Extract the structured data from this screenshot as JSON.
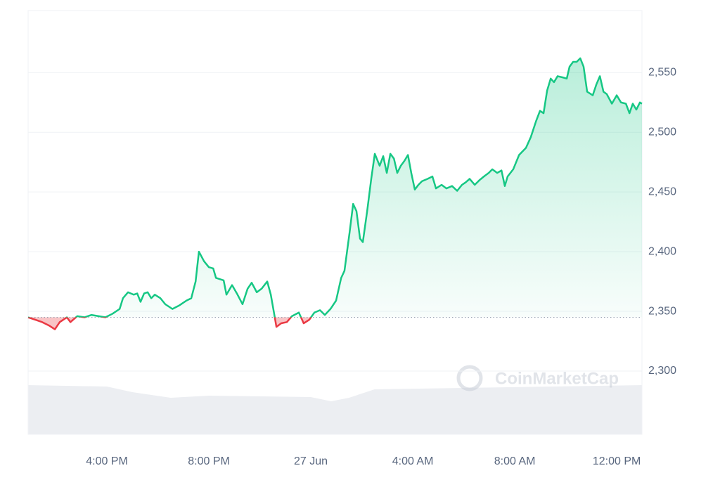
{
  "chart_data": {
    "type": "line",
    "watermark": "CoinMarketCap",
    "x": [
      12.91,
      13.19,
      13.46,
      13.74,
      13.96,
      14.15,
      14.43,
      14.57,
      14.84,
      15.12,
      15.39,
      15.94,
      16.22,
      16.5,
      16.63,
      16.83,
      17.05,
      17.19,
      17.32,
      17.46,
      17.6,
      17.74,
      17.88,
      18.1,
      18.29,
      18.57,
      18.84,
      19.12,
      19.31,
      19.48,
      19.61,
      19.81,
      20.0,
      20.17,
      20.28,
      20.58,
      20.69,
      20.91,
      21.1,
      21.32,
      21.52,
      21.68,
      21.88,
      22.07,
      22.29,
      22.43,
      22.57,
      22.65,
      22.84,
      23.06,
      23.26,
      23.53,
      23.72,
      23.94,
      24.14,
      24.36,
      24.55,
      24.77,
      24.99,
      25.19,
      25.32,
      25.52,
      25.66,
      25.79,
      25.93,
      26.04,
      26.21,
      26.37,
      26.51,
      26.7,
      26.84,
      26.98,
      27.12,
      27.26,
      27.39,
      27.53,
      27.67,
      27.81,
      27.94,
      28.08,
      28.22,
      28.36,
      28.58,
      28.77,
      28.91,
      29.13,
      29.32,
      29.54,
      29.74,
      29.93,
      30.07,
      30.23,
      30.43,
      30.62,
      30.79,
      30.98,
      31.12,
      31.31,
      31.48,
      31.61,
      31.72,
      31.94,
      32.17,
      32.44,
      32.63,
      32.83,
      32.99,
      33.13,
      33.27,
      33.41,
      33.54,
      33.68,
      33.88,
      34.04,
      34.15,
      34.29,
      34.43,
      34.57,
      34.7,
      34.84,
      35.06,
      35.2,
      35.34,
      35.48,
      35.61,
      35.81,
      36.0,
      36.17,
      36.36,
      36.5,
      36.63,
      36.77,
      36.91,
      36.99
    ],
    "series": [
      {
        "name": "Price",
        "color": "#16c784",
        "down_color": "#ea3943",
        "values": [
          2345,
          2343,
          2341,
          2338,
          2335,
          2341,
          2345,
          2341,
          2346,
          2345,
          2347,
          2345,
          2348,
          2352,
          2361,
          2366,
          2364,
          2365,
          2358,
          2365,
          2366,
          2361,
          2364,
          2361,
          2356,
          2352,
          2355,
          2359,
          2361,
          2375,
          2400,
          2392,
          2387,
          2386,
          2378,
          2376,
          2364,
          2372,
          2365,
          2356,
          2369,
          2374,
          2366,
          2369,
          2375,
          2364,
          2347,
          2337,
          2340,
          2341,
          2346,
          2349,
          2340,
          2343,
          2349,
          2351,
          2347,
          2352,
          2359,
          2378,
          2384,
          2416,
          2440,
          2434,
          2411,
          2408,
          2434,
          2461,
          2482,
          2472,
          2480,
          2466,
          2482,
          2478,
          2466,
          2472,
          2476,
          2481,
          2466,
          2452,
          2456,
          2459,
          2461,
          2463,
          2453,
          2456,
          2453,
          2455,
          2451,
          2456,
          2458,
          2461,
          2456,
          2460,
          2463,
          2466,
          2469,
          2466,
          2468,
          2455,
          2463,
          2469,
          2481,
          2487,
          2496,
          2509,
          2518,
          2516,
          2535,
          2545,
          2542,
          2547,
          2546,
          2545,
          2555,
          2559,
          2559,
          2562,
          2555,
          2534,
          2531,
          2540,
          2547,
          2534,
          2532,
          2524,
          2531,
          2525,
          2524,
          2516,
          2524,
          2519,
          2525,
          2524
        ]
      }
    ],
    "baseline": 2345,
    "volume": {
      "color": "#eceef2",
      "x": [
        12.91,
        16.0,
        17.0,
        18.5,
        20.0,
        24.0,
        24.8,
        25.5,
        26.5,
        36.99
      ],
      "values": [
        70,
        68,
        60,
        52,
        55,
        53,
        47,
        52,
        64,
        70
      ],
      "ylim": [
        0,
        100
      ]
    },
    "xlim": [
      12.91,
      36.99
    ],
    "xticks": [
      {
        "value": 16,
        "label": "4:00 PM"
      },
      {
        "value": 20,
        "label": "8:00 PM"
      },
      {
        "value": 24,
        "label": "27 Jun"
      },
      {
        "value": 28,
        "label": "4:00 AM"
      },
      {
        "value": 32,
        "label": "8:00 AM"
      },
      {
        "value": 36,
        "label": "12:00 PM"
      }
    ],
    "ylim": [
      2247,
      2602
    ],
    "yticks": [
      {
        "value": 2300,
        "label": "2,300"
      },
      {
        "value": 2350,
        "label": "2,350"
      },
      {
        "value": 2400,
        "label": "2,400"
      },
      {
        "value": 2450,
        "label": "2,450"
      },
      {
        "value": 2500,
        "label": "2,500"
      },
      {
        "value": 2550,
        "label": "2,550"
      }
    ],
    "grid": true
  }
}
